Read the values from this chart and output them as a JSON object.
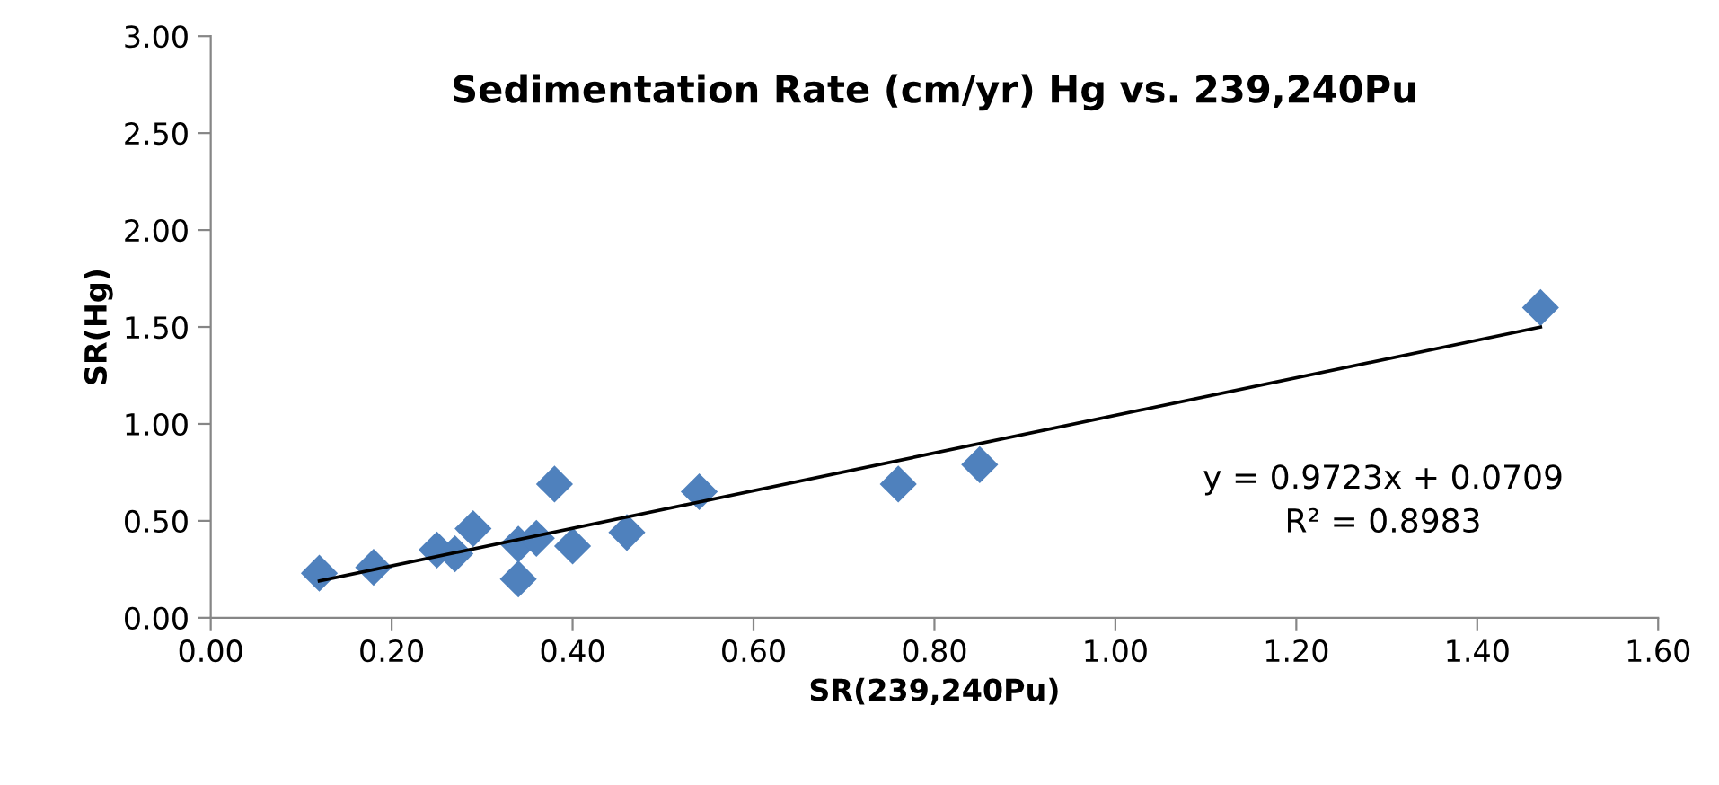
{
  "chart_data": {
    "type": "scatter",
    "title": "Sedimentation Rate (cm/yr) Hg vs. 239,240Pu",
    "xlabel": "SR(239,240Pu)",
    "ylabel": "SR(Hg)",
    "xlim": [
      0,
      1.6
    ],
    "ylim": [
      0,
      3
    ],
    "xticks": [
      {
        "value": 0,
        "label": "0.00"
      },
      {
        "value": 0.2,
        "label": "0.20"
      },
      {
        "value": 0.4,
        "label": "0.40"
      },
      {
        "value": 0.6,
        "label": "0.60"
      },
      {
        "value": 0.8,
        "label": "0.80"
      },
      {
        "value": 1.0,
        "label": "1.00"
      },
      {
        "value": 1.2,
        "label": "1.20"
      },
      {
        "value": 1.4,
        "label": "1.40"
      },
      {
        "value": 1.6,
        "label": "1.60"
      }
    ],
    "yticks": [
      {
        "value": 0,
        "label": "0.00"
      },
      {
        "value": 0.5,
        "label": "0.50"
      },
      {
        "value": 1.0,
        "label": "1.00"
      },
      {
        "value": 1.5,
        "label": "1.50"
      },
      {
        "value": 2.0,
        "label": "2.00"
      },
      {
        "value": 2.5,
        "label": "2.50"
      },
      {
        "value": 3.0,
        "label": "3.00"
      }
    ],
    "grid": false,
    "legend": false,
    "series": [
      {
        "marker": "diamond",
        "color": "#4f81bd",
        "x": [
          0.12,
          0.18,
          0.25,
          0.27,
          0.29,
          0.34,
          0.34,
          0.36,
          0.38,
          0.4,
          0.46,
          0.54,
          0.76,
          0.85,
          1.47
        ],
        "values": [
          0.23,
          0.26,
          0.35,
          0.33,
          0.46,
          0.38,
          0.2,
          0.41,
          0.69,
          0.37,
          0.44,
          0.65,
          0.69,
          0.79,
          1.6
        ]
      },
      {
        "type": "line",
        "marker": "none",
        "color": "#000000",
        "x": [
          0.12,
          1.47
        ],
        "values": [
          0.19,
          1.5
        ]
      }
    ],
    "annotations": [
      "y = 0.9723x + 0.0709\nR² = 0.8983"
    ]
  }
}
